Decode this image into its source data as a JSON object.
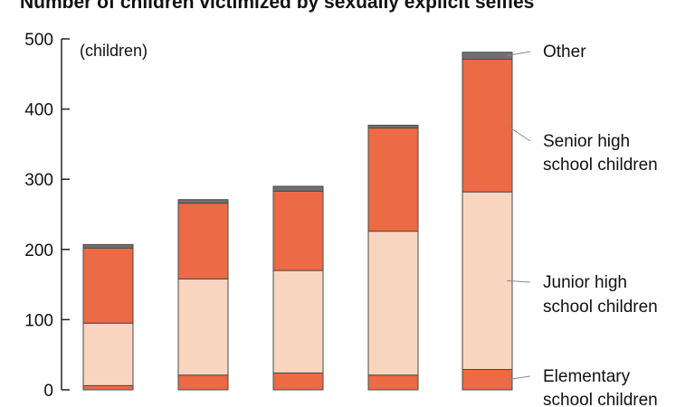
{
  "chart_data": {
    "type": "bar",
    "stacked": true,
    "title": "Number of children victimized by sexually explicit selfies",
    "ylabel": "(children)",
    "ylim": [
      0,
      500
    ],
    "yticks": [
      0,
      100,
      200,
      300,
      400,
      500
    ],
    "categories": [
      "",
      "",
      "",
      "",
      ""
    ],
    "series": [
      {
        "name": "Elementary school children",
        "color": "#ec6a45",
        "values": [
          6,
          21,
          24,
          21,
          29
        ]
      },
      {
        "name": "Junior high school children",
        "color": "#f9d5c0",
        "values": [
          89,
          137,
          146,
          205,
          253
        ]
      },
      {
        "name": "Senior high school children",
        "color": "#ec6a45",
        "values": [
          107,
          108,
          113,
          147,
          189
        ]
      },
      {
        "name": "Other",
        "color": "#707070",
        "values": [
          5,
          5,
          7,
          4,
          10
        ]
      }
    ],
    "legend": {
      "placement": "right",
      "labels": [
        [
          "Other"
        ],
        [
          "Senior high",
          "school children"
        ],
        [
          "Junior high",
          "school children"
        ],
        [
          "Elementary",
          "school children"
        ]
      ]
    }
  }
}
